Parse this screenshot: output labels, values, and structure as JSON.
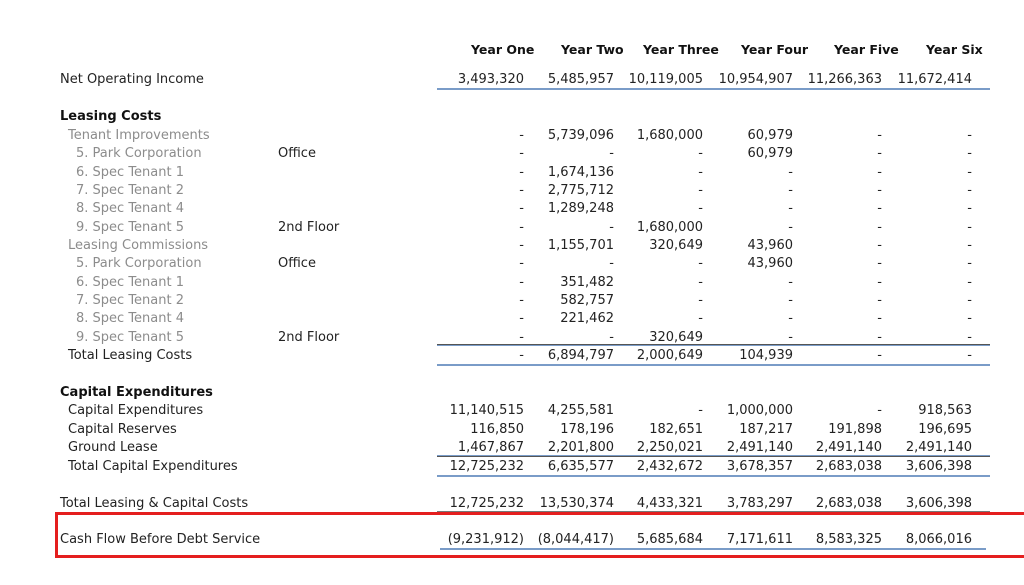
{
  "columns": [
    "Year One",
    "Year Two",
    "Year Three",
    "Year Four",
    "Year Five",
    "Year Six"
  ],
  "rows": [
    {
      "label": "Net Operating Income",
      "sub": "",
      "values": [
        "3,493,320",
        "5,485,957",
        "10,119,005",
        "10,954,907",
        "11,266,363",
        "11,672,414"
      ]
    },
    {
      "label": "Leasing Costs",
      "sub": "",
      "values": [
        "",
        "",
        "",
        "",
        "",
        ""
      ]
    },
    {
      "label": "Tenant Improvements",
      "sub": "",
      "values": [
        "-",
        "5,739,096",
        "1,680,000",
        "60,979",
        "-",
        "-"
      ]
    },
    {
      "label": "5. Park Corporation",
      "sub": "Office",
      "values": [
        "-",
        "-",
        "-",
        "60,979",
        "-",
        "-"
      ]
    },
    {
      "label": "6. Spec Tenant 1",
      "sub": "",
      "values": [
        "-",
        "1,674,136",
        "-",
        "-",
        "-",
        "-"
      ]
    },
    {
      "label": "7. Spec Tenant 2",
      "sub": "",
      "values": [
        "-",
        "2,775,712",
        "-",
        "-",
        "-",
        "-"
      ]
    },
    {
      "label": "8. Spec Tenant 4",
      "sub": "",
      "values": [
        "-",
        "1,289,248",
        "-",
        "-",
        "-",
        "-"
      ]
    },
    {
      "label": "9. Spec Tenant 5",
      "sub": "2nd Floor",
      "values": [
        "-",
        "-",
        "1,680,000",
        "-",
        "-",
        "-"
      ]
    },
    {
      "label": "Leasing Commissions",
      "sub": "",
      "values": [
        "-",
        "1,155,701",
        "320,649",
        "43,960",
        "-",
        "-"
      ]
    },
    {
      "label": "5. Park Corporation",
      "sub": "Office",
      "values": [
        "-",
        "-",
        "-",
        "43,960",
        "-",
        "-"
      ]
    },
    {
      "label": "6. Spec Tenant 1",
      "sub": "",
      "values": [
        "-",
        "351,482",
        "-",
        "-",
        "-",
        "-"
      ]
    },
    {
      "label": "7. Spec Tenant 2",
      "sub": "",
      "values": [
        "-",
        "582,757",
        "-",
        "-",
        "-",
        "-"
      ]
    },
    {
      "label": "8. Spec Tenant 4",
      "sub": "",
      "values": [
        "-",
        "221,462",
        "-",
        "-",
        "-",
        "-"
      ]
    },
    {
      "label": "9. Spec Tenant 5",
      "sub": "2nd Floor",
      "values": [
        "-",
        "-",
        "320,649",
        "-",
        "-",
        "-"
      ]
    },
    {
      "label": "Total Leasing Costs",
      "sub": "",
      "values": [
        "-",
        "6,894,797",
        "2,000,649",
        "104,939",
        "-",
        "-"
      ]
    },
    {
      "label": "Capital Expenditures",
      "sub": "",
      "values": [
        "",
        "",
        "",
        "",
        "",
        ""
      ]
    },
    {
      "label": "Capital Expenditures",
      "sub": "",
      "values": [
        "11,140,515",
        "4,255,581",
        "-",
        "1,000,000",
        "-",
        "918,563"
      ]
    },
    {
      "label": "Capital Reserves",
      "sub": "",
      "values": [
        "116,850",
        "178,196",
        "182,651",
        "187,217",
        "191,898",
        "196,695"
      ]
    },
    {
      "label": "Ground Lease",
      "sub": "",
      "values": [
        "1,467,867",
        "2,201,800",
        "2,250,021",
        "2,491,140",
        "2,491,140",
        "2,491,140"
      ]
    },
    {
      "label": "Total Capital Expenditures",
      "sub": "",
      "values": [
        "12,725,232",
        "6,635,577",
        "2,432,672",
        "3,678,357",
        "2,683,038",
        "3,606,398"
      ]
    },
    {
      "label": "Total Leasing & Capital Costs",
      "sub": "",
      "values": [
        "12,725,232",
        "13,530,374",
        "4,433,321",
        "3,783,297",
        "2,683,038",
        "3,606,398"
      ]
    },
    {
      "label": "Cash Flow Before Debt Service",
      "sub": "",
      "values": [
        "(9,231,912)",
        "(8,044,417)",
        "5,685,684",
        "7,171,611",
        "8,583,325",
        "8,066,016"
      ]
    }
  ]
}
